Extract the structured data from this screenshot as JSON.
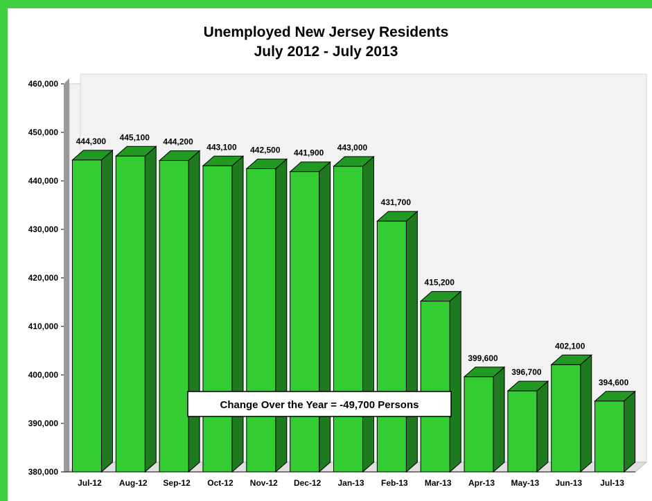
{
  "chart_data": {
    "type": "bar",
    "title_line1": "Unemployed New Jersey Residents",
    "title_line2": "July 2012 - July 2013",
    "categories": [
      "Jul-12",
      "Aug-12",
      "Sep-12",
      "Oct-12",
      "Nov-12",
      "Dec-12",
      "Jan-13",
      "Feb-13",
      "Mar-13",
      "Apr-13",
      "May-13",
      "Jun-13",
      "Jul-13"
    ],
    "values": [
      444300,
      445100,
      444200,
      443100,
      442500,
      441900,
      443000,
      431700,
      415200,
      399600,
      396700,
      402100,
      394600
    ],
    "value_labels": [
      "444,300",
      "445,100",
      "444,200",
      "443,100",
      "442,500",
      "441,900",
      "443,000",
      "431,700",
      "415,200",
      "399,600",
      "396,700",
      "402,100",
      "394,600"
    ],
    "ylim": [
      380000,
      460000
    ],
    "yticks": [
      380000,
      390000,
      400000,
      410000,
      420000,
      430000,
      440000,
      450000,
      460000
    ],
    "ytick_labels": [
      "380,000",
      "390,000",
      "400,000",
      "410,000",
      "420,000",
      "430,000",
      "440,000",
      "450,000",
      "460,000"
    ],
    "annotation": "Change Over the Year = -49,700 Persons",
    "colors": {
      "bar": "#33cc33",
      "bar_top": "#229922",
      "bar_side": "#1f7a1f",
      "wall": "#f2f2f2",
      "border": "#3fcf3f"
    }
  }
}
